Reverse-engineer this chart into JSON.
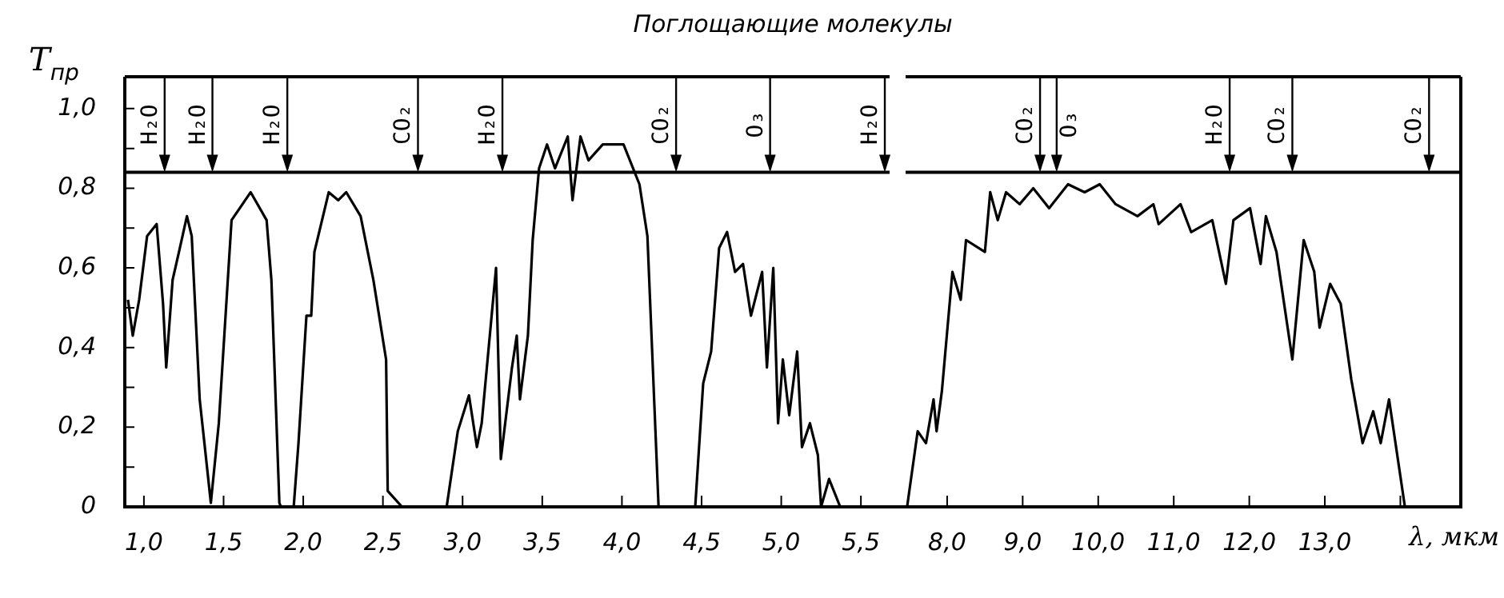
{
  "chart_data": [
    {
      "type": "line",
      "title": "Поглощающие молекулы",
      "ylabel": "T$_{пр}$",
      "color": "#000000",
      "x": [
        0.9,
        0.93,
        0.97,
        1.02,
        1.08,
        1.12,
        1.14,
        1.18,
        1.22,
        1.27,
        1.3,
        1.35,
        1.42,
        1.47,
        1.55,
        1.67,
        1.77,
        1.8,
        1.85,
        1.86,
        1.94,
        1.97,
        2.02,
        2.05,
        2.07,
        2.16,
        2.22,
        2.27,
        2.36,
        2.44,
        2.52,
        2.53,
        2.62,
        2.9,
        2.97,
        3.04,
        3.09,
        3.12,
        3.21,
        3.24,
        3.31,
        3.34,
        3.36,
        3.41,
        3.44,
        3.48,
        3.53,
        3.58,
        3.66,
        3.69,
        3.74,
        3.79,
        3.88,
        4.01,
        4.11,
        4.16,
        4.23,
        4.46,
        4.51,
        4.56,
        4.61,
        4.66,
        4.71,
        4.76,
        4.81,
        4.88,
        4.91,
        4.95,
        4.98,
        5.01,
        5.05,
        5.1,
        5.13,
        5.18,
        5.23,
        5.25,
        5.3,
        5.37
      ],
      "values": [
        0.52,
        0.43,
        0.52,
        0.68,
        0.71,
        0.51,
        0.35,
        0.57,
        0.64,
        0.73,
        0.68,
        0.27,
        0.01,
        0.21,
        0.72,
        0.79,
        0.72,
        0.57,
        0.01,
        0,
        0,
        0.16,
        0.48,
        0.48,
        0.64,
        0.79,
        0.77,
        0.79,
        0.73,
        0.57,
        0.37,
        0.04,
        0,
        0,
        0.19,
        0.28,
        0.15,
        0.21,
        0.6,
        0.12,
        0.35,
        0.43,
        0.27,
        0.43,
        0.67,
        0.85,
        0.91,
        0.85,
        0.93,
        0.77,
        0.93,
        0.87,
        0.91,
        0.91,
        0.81,
        0.68,
        0,
        0,
        0.31,
        0.39,
        0.65,
        0.69,
        0.59,
        0.61,
        0.48,
        0.59,
        0.35,
        0.6,
        0.21,
        0.37,
        0.23,
        0.39,
        0.15,
        0.21,
        0.13,
        0,
        0.07,
        0
      ],
      "xlim": [
        0.88,
        5.68
      ],
      "xticks": [
        {
          "value": 1,
          "label": "1,0"
        },
        {
          "value": 1.5,
          "label": "1,5"
        },
        {
          "value": 2,
          "label": "2,0"
        },
        {
          "value": 2.5,
          "label": "2,5"
        },
        {
          "value": 3,
          "label": "3,0"
        },
        {
          "value": 3.5,
          "label": "3,5"
        },
        {
          "value": 4,
          "label": "4,0"
        },
        {
          "value": 4.5,
          "label": "4,5"
        },
        {
          "value": 5,
          "label": "5,0"
        },
        {
          "value": 5.5,
          "label": "5,5"
        }
      ],
      "ylim": [
        0,
        1.08
      ],
      "yticks": [
        0,
        {
          "value": 0.1,
          "label": null
        },
        {
          "value": 0.2,
          "label": "0,2"
        },
        {
          "value": 0.3,
          "label": null
        },
        {
          "value": 0.4,
          "label": "0,4"
        },
        {
          "value": 0.5,
          "label": null
        },
        {
          "value": 0.6,
          "label": "0,6"
        },
        {
          "value": 0.7,
          "label": null
        },
        {
          "value": 0.8,
          "label": "0,8"
        },
        {
          "value": 0.9,
          "label": null
        },
        {
          "value": 1,
          "label": "1,0"
        }
      ],
      "ref_lines": [
        {
          "axis": "y",
          "value": 0.84
        }
      ],
      "annotations": [
        {
          "text": "H₂O",
          "x": 1.13,
          "y": 0.84
        },
        {
          "text": "H₂O",
          "x": 1.43,
          "y": 0.84
        },
        {
          "text": "H₂O",
          "x": 1.9,
          "y": 0.84
        },
        {
          "text": "CO₂",
          "x": 2.72,
          "y": 0.84
        },
        {
          "text": "H₂O",
          "x": 3.25,
          "y": 0.84
        },
        {
          "text": "CO₂",
          "x": 4.34,
          "y": 0.84
        },
        {
          "text": "O₃",
          "x": 4.93,
          "y": 0.84
        },
        {
          "text": "H₂O",
          "x": 5.65,
          "y": 0.84
        }
      ]
    },
    {
      "type": "line",
      "xlabel": "λ, мкм",
      "color": "#000000",
      "tick_labels": "x",
      "x": [
        7.47,
        7.61,
        7.72,
        7.82,
        7.86,
        7.93,
        8.07,
        8.18,
        8.25,
        8.5,
        8.57,
        8.67,
        8.78,
        8.96,
        9.14,
        9.35,
        9.6,
        9.82,
        10.02,
        10.23,
        10.52,
        10.73,
        10.8,
        11.09,
        11.23,
        11.51,
        11.69,
        11.79,
        12.01,
        12.15,
        12.22,
        12.36,
        12.57,
        12.72,
        12.86,
        12.93,
        13.07,
        13.21,
        13.35,
        13.5,
        13.64,
        13.74,
        13.85,
        14.06
      ],
      "values": [
        0,
        0.19,
        0.16,
        0.27,
        0.19,
        0.29,
        0.59,
        0.52,
        0.67,
        0.64,
        0.79,
        0.72,
        0.79,
        0.76,
        0.8,
        0.75,
        0.81,
        0.79,
        0.81,
        0.76,
        0.73,
        0.76,
        0.71,
        0.76,
        0.69,
        0.72,
        0.56,
        0.72,
        0.75,
        0.61,
        0.73,
        0.64,
        0.37,
        0.67,
        0.59,
        0.45,
        0.56,
        0.51,
        0.32,
        0.16,
        0.24,
        0.16,
        0.27,
        0
      ],
      "xlim": [
        7.45,
        14.8
      ],
      "xticks": [
        {
          "value": 8,
          "label": "8,0"
        },
        {
          "value": 9,
          "label": "9,0"
        },
        {
          "value": 10,
          "label": "10,0"
        },
        {
          "value": 11,
          "label": "11,0"
        },
        {
          "value": 12,
          "label": "12,0"
        },
        {
          "value": 13,
          "label": "13,0"
        },
        {
          "value": 14,
          "label": null
        }
      ],
      "ylim": [
        0,
        1.08
      ],
      "ref_lines": [
        {
          "axis": "y",
          "value": 0.84
        }
      ],
      "annotations": [
        {
          "text": "CO₂",
          "x": 9.23,
          "y": 0.84
        },
        {
          "text": "O₃",
          "x": 9.45,
          "y": 0.84
        },
        {
          "text": "H₂O",
          "x": 11.74,
          "y": 0.84
        },
        {
          "text": "CO₂",
          "x": 12.57,
          "y": 0.84
        },
        {
          "text": "CO₂",
          "x": 14.38,
          "y": 0.84
        }
      ]
    }
  ]
}
